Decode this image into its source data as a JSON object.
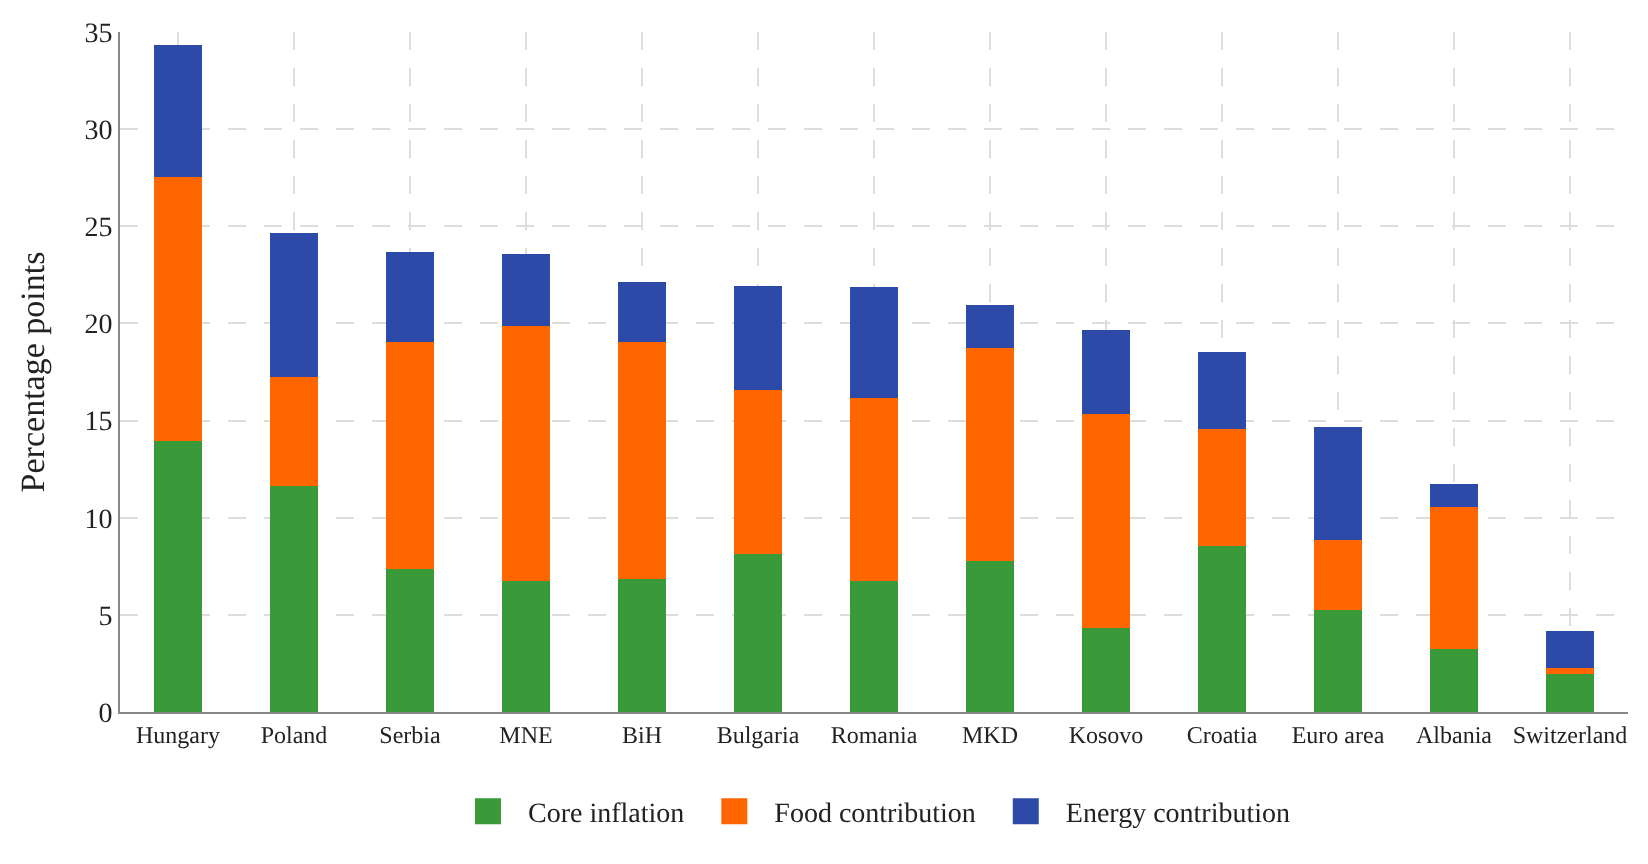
{
  "chart_data": {
    "type": "bar",
    "stacked": true,
    "ylabel": "Percentage points",
    "categories": [
      "Hungary",
      "Poland",
      "Serbia",
      "MNE",
      "BiH",
      "Bulgaria",
      "Romania",
      "MKD",
      "Kosovo",
      "Croatia",
      "Euro area",
      "Albania",
      "Switzerland"
    ],
    "series": [
      {
        "name": "Core inflation",
        "color": "#3a9a3a",
        "values": [
          14.0,
          11.7,
          7.4,
          6.8,
          6.9,
          8.2,
          6.8,
          7.8,
          4.4,
          8.6,
          5.3,
          3.3,
          2.0
        ]
      },
      {
        "name": "Food contribution",
        "color": "#ff6600",
        "values": [
          13.6,
          5.6,
          11.7,
          13.1,
          12.2,
          8.4,
          9.4,
          11.0,
          11.0,
          6.0,
          3.6,
          7.3,
          0.3
        ]
      },
      {
        "name": "Energy contribution",
        "color": "#2e4aa8",
        "values": [
          6.7,
          7.3,
          4.5,
          3.6,
          3.0,
          5.3,
          5.6,
          2.1,
          4.2,
          3.9,
          5.7,
          1.1,
          1.8
        ]
      }
    ],
    "ylim": [
      0,
      35
    ],
    "yticks": [
      0,
      5,
      10,
      15,
      20,
      25,
      30,
      35
    ],
    "grid": true,
    "legend": "bottom"
  }
}
